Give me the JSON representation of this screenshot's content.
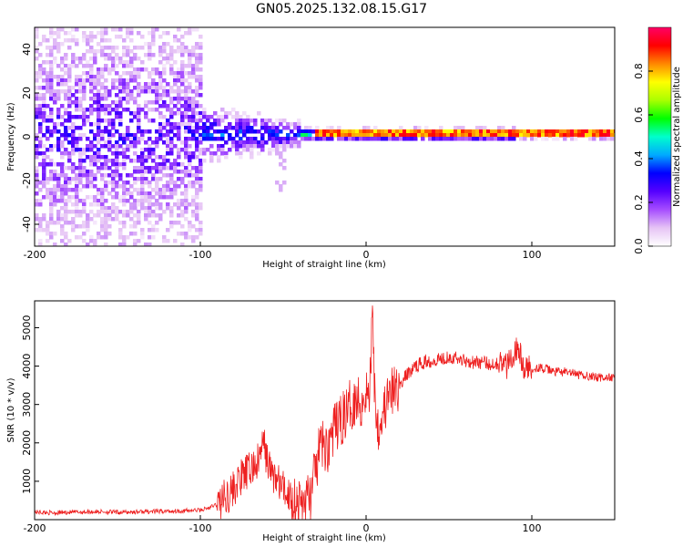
{
  "title": "GN05.2025.132.08.15.G17",
  "chart_data": [
    {
      "type": "heatmap",
      "xlabel": "Height of straight line (km)",
      "ylabel": "Frequency (Hz)",
      "xlim": [
        -200,
        150
      ],
      "ylim": [
        -50,
        50
      ],
      "xticks": [
        -200,
        -100,
        0,
        100
      ],
      "yticks": [
        -40,
        -20,
        0,
        20,
        40
      ],
      "colorbar": {
        "label": "Normalized spectral amplitude",
        "range": [
          0.0,
          1.0
        ],
        "ticks": [
          0.0,
          0.2,
          0.4,
          0.6,
          0.8
        ],
        "colors": [
          "#ffffff",
          "#e6c4f5",
          "#a64dff",
          "#5500ff",
          "#0000ff",
          "#00aaff",
          "#00ffcc",
          "#00ff00",
          "#aaff00",
          "#ffff00",
          "#ff8800",
          "#ff0000",
          "#ff0066"
        ]
      }
    },
    {
      "type": "line",
      "xlabel": "Height of straight line (km)",
      "ylabel": "SNR (10 * v/v)",
      "xlim": [
        -200,
        150
      ],
      "ylim": [
        0,
        5700
      ],
      "xticks": [
        -200,
        -100,
        0,
        100
      ],
      "yticks": [
        1000,
        2000,
        3000,
        4000,
        5000
      ],
      "color": "#ee2020",
      "series": [
        {
          "x": [
            -200,
            -190,
            -180,
            -170,
            -160,
            -150,
            -140,
            -130,
            -120,
            -110,
            -100,
            -95,
            -90,
            -85,
            -80,
            -75,
            -70,
            -65,
            -62,
            -58,
            -55,
            -50,
            -45,
            -40,
            -37,
            -33,
            -30,
            -27,
            -24,
            -21,
            -18,
            -15,
            -12,
            -9,
            -6,
            -3,
            0,
            2,
            4,
            5,
            6,
            8,
            10,
            13,
            16,
            20,
            25,
            30,
            35,
            40,
            45,
            50,
            55,
            60,
            65,
            70,
            75,
            80,
            85,
            88,
            92,
            95,
            100,
            105,
            110,
            115,
            120,
            125,
            130,
            135,
            140,
            145,
            150
          ],
          "values": [
            200,
            180,
            190,
            200,
            210,
            190,
            200,
            210,
            220,
            230,
            250,
            300,
            400,
            600,
            800,
            1100,
            1300,
            1500,
            2000,
            1300,
            1100,
            800,
            600,
            400,
            500,
            700,
            1400,
            2000,
            1800,
            2200,
            2400,
            2600,
            2800,
            3000,
            3200,
            3000,
            3400,
            3100,
            5600,
            3600,
            2800,
            2400,
            2800,
            3100,
            3300,
            3500,
            3800,
            4000,
            4100,
            4150,
            4200,
            4250,
            4200,
            4150,
            4100,
            4100,
            4050,
            4100,
            4000,
            4300,
            4500,
            3900,
            3950,
            3950,
            3900,
            3850,
            3850,
            3800,
            3750,
            3750,
            3700,
            3700,
            3700
          ]
        }
      ]
    }
  ]
}
